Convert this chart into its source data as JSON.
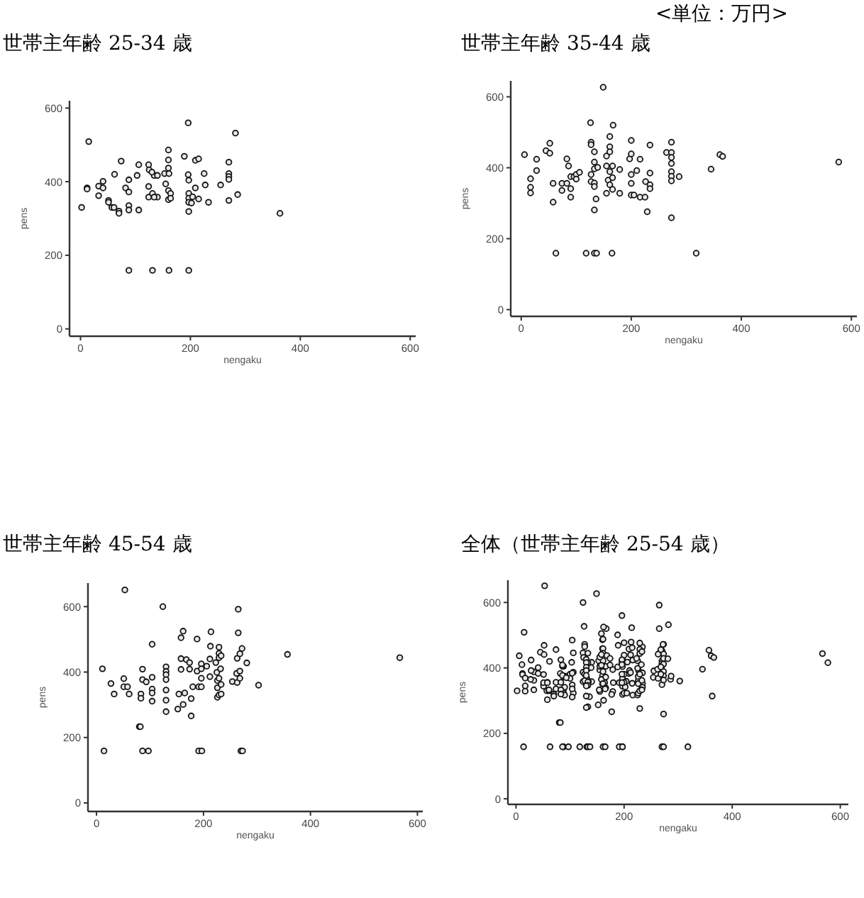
{
  "chart_data": [
    {
      "type": "scatter",
      "title": "世帯主年齢 25-34 歳",
      "xlabel": "nengaku",
      "ylabel": "pens",
      "xlim": [
        -20,
        610
      ],
      "ylim": [
        -20,
        620
      ],
      "xticks": [
        0,
        200,
        400,
        600
      ],
      "yticks": [
        0,
        200,
        400,
        600
      ],
      "marker": "circle",
      "x": [
        2,
        15,
        12,
        12,
        33,
        33,
        41,
        41,
        51,
        51,
        57,
        61,
        62,
        70,
        70,
        74,
        82,
        88,
        88,
        88,
        88,
        88,
        106,
        103,
        106,
        124,
        125,
        124,
        124,
        131,
        131,
        134,
        140,
        130,
        140,
        134,
        155,
        153,
        160,
        160,
        160,
        161,
        160,
        164,
        160,
        164,
        161,
        189,
        196,
        196,
        197,
        197,
        197,
        197,
        197,
        197,
        204,
        202,
        209,
        215,
        209,
        215,
        225,
        227,
        233,
        255,
        270,
        270,
        270,
        270,
        270,
        282,
        286,
        363
      ],
      "values": [
        330,
        509,
        383,
        380,
        388,
        362,
        401,
        383,
        349,
        344,
        330,
        330,
        420,
        320,
        314,
        456,
        383,
        372,
        405,
        335,
        323,
        159,
        323,
        417,
        446,
        446,
        432,
        387,
        358,
        368,
        159,
        417,
        417,
        426,
        358,
        358,
        394,
        422,
        486,
        459,
        437,
        422,
        376,
        368,
        351,
        355,
        159,
        469,
        560,
        419,
        404,
        368,
        355,
        344,
        319,
        159,
        359,
        342,
        458,
        462,
        383,
        353,
        422,
        391,
        344,
        391,
        453,
        422,
        414,
        406,
        349,
        532,
        365,
        314
      ]
    },
    {
      "type": "scatter",
      "title": "世帯主年齢 35-44 歳",
      "xlabel": "nengaku",
      "ylabel": "pens",
      "xlim": [
        -19,
        610
      ],
      "ylim": [
        -19,
        645
      ],
      "xticks": [
        0,
        200,
        400,
        600
      ],
      "yticks": [
        0,
        200,
        400,
        600
      ],
      "marker": "circle",
      "annotations": [
        "<単位：万円>"
      ],
      "x": [
        6,
        17,
        17,
        17,
        28,
        28,
        45,
        52,
        52,
        58,
        58,
        63,
        74,
        74,
        83,
        83,
        86,
        90,
        90,
        90,
        96,
        100,
        100,
        106,
        118,
        126,
        127,
        127,
        127,
        127,
        133,
        133,
        133,
        133,
        133,
        133,
        136,
        133,
        137,
        139,
        149,
        155,
        155,
        155,
        158,
        161,
        161,
        161,
        161,
        161,
        165,
        167,
        166,
        166,
        166,
        179,
        179,
        197,
        200,
        200,
        200,
        200,
        200,
        205,
        210,
        216,
        216,
        225,
        226,
        229,
        234,
        234,
        234,
        234,
        264,
        273,
        273,
        273,
        273,
        273,
        273,
        273,
        273,
        287,
        318,
        345,
        361,
        366,
        577
      ],
      "values": [
        437,
        369,
        345,
        329,
        424,
        392,
        448,
        469,
        441,
        356,
        303,
        159,
        356,
        336,
        425,
        356,
        405,
        375,
        341,
        317,
        375,
        381,
        368,
        387,
        159,
        527,
        472,
        465,
        381,
        361,
        445,
        416,
        397,
        357,
        347,
        281,
        312,
        159,
        159,
        401,
        627,
        405,
        433,
        328,
        365,
        488,
        459,
        445,
        389,
        352,
        159,
        520,
        405,
        372,
        339,
        395,
        328,
        425,
        477,
        439,
        381,
        356,
        323,
        323,
        392,
        424,
        317,
        317,
        361,
        276,
        464,
        385,
        352,
        341,
        443,
        472,
        443,
        429,
        412,
        389,
        376,
        363,
        259,
        375,
        159,
        396,
        437,
        432,
        416
      ]
    },
    {
      "type": "scatter",
      "title": "世帯主年齢 45-54 歳",
      "xlabel": "nengaku",
      "ylabel": "pens",
      "xlim": [
        -16,
        610
      ],
      "ylim": [
        -26,
        672
      ],
      "xticks": [
        0,
        200,
        400,
        600
      ],
      "yticks": [
        0,
        200,
        400,
        600
      ],
      "marker": "circle",
      "x": [
        11,
        14,
        27,
        33,
        51,
        53,
        51,
        58,
        61,
        80,
        82,
        83,
        83,
        86,
        86,
        86,
        93,
        97,
        104,
        104,
        104,
        104,
        104,
        124,
        130,
        130,
        130,
        130,
        130,
        130,
        130,
        152,
        154,
        158,
        162,
        158,
        158,
        162,
        165,
        168,
        174,
        174,
        177,
        177,
        180,
        188,
        188,
        191,
        196,
        196,
        196,
        196,
        191,
        197,
        206,
        212,
        212,
        214,
        213,
        223,
        225,
        226,
        226,
        226,
        229,
        229,
        229,
        229,
        229,
        232,
        233,
        233,
        233,
        254,
        262,
        263,
        263,
        265,
        265,
        268,
        268,
        268,
        272,
        270,
        273,
        281,
        303,
        357,
        567
      ],
      "values": [
        410,
        159,
        365,
        333,
        380,
        651,
        355,
        355,
        333,
        233,
        233,
        333,
        320,
        409,
        377,
        159,
        370,
        159,
        485,
        384,
        348,
        336,
        311,
        600,
        279,
        416,
        402,
        392,
        377,
        345,
        314,
        287,
        333,
        505,
        525,
        441,
        408,
        301,
        336,
        438,
        429,
        409,
        266,
        319,
        355,
        501,
        403,
        355,
        425,
        410,
        381,
        355,
        159,
        159,
        418,
        440,
        386,
        523,
        479,
        429,
        399,
        374,
        352,
        323,
        476,
        457,
        444,
        381,
        330,
        410,
        450,
        362,
        333,
        371,
        396,
        442,
        368,
        520,
        592,
        456,
        403,
        381,
        472,
        159,
        159,
        428,
        360,
        454,
        444
      ]
    },
    {
      "type": "scatter",
      "title": "全体（世帯主年齢 25-54 歳）",
      "xlabel": "nengaku",
      "ylabel": "pens",
      "xlim": [
        -15,
        615
      ],
      "ylim": [
        -17,
        668
      ],
      "xticks": [
        0,
        200,
        400,
        600
      ],
      "yticks": [
        0,
        200,
        400,
        600
      ],
      "marker": "circle",
      "x": [
        2,
        15,
        12,
        12,
        33,
        33,
        41,
        41,
        51,
        51,
        57,
        61,
        62,
        70,
        70,
        74,
        82,
        88,
        88,
        88,
        88,
        88,
        106,
        103,
        106,
        124,
        125,
        124,
        124,
        131,
        131,
        140,
        130,
        140,
        134,
        155,
        153,
        160,
        160,
        161,
        160,
        164,
        160,
        164,
        161,
        189,
        196,
        196,
        197,
        197,
        197,
        197,
        197,
        204,
        202,
        209,
        215,
        209,
        215,
        225,
        227,
        233,
        255,
        270,
        270,
        270,
        270,
        270,
        282,
        286,
        363,
        6,
        17,
        17,
        17,
        28,
        28,
        45,
        52,
        52,
        58,
        58,
        63,
        74,
        74,
        83,
        83,
        86,
        90,
        90,
        90,
        96,
        100,
        100,
        106,
        118,
        126,
        127,
        127,
        127,
        127,
        133,
        133,
        133,
        133,
        133,
        133,
        136,
        133,
        137,
        139,
        149,
        155,
        155,
        155,
        158,
        161,
        161,
        161,
        161,
        161,
        165,
        167,
        166,
        166,
        166,
        179,
        179,
        197,
        200,
        200,
        200,
        200,
        200,
        205,
        210,
        216,
        216,
        225,
        226,
        229,
        234,
        234,
        234,
        234,
        264,
        273,
        273,
        273,
        273,
        273,
        273,
        273,
        273,
        287,
        318,
        345,
        361,
        366,
        577,
        11,
        14,
        27,
        33,
        51,
        53,
        51,
        58,
        61,
        80,
        82,
        83,
        83,
        86,
        86,
        86,
        93,
        97,
        104,
        104,
        104,
        104,
        104,
        124,
        130,
        130,
        130,
        130,
        130,
        130,
        130,
        152,
        154,
        158,
        162,
        158,
        158,
        162,
        165,
        168,
        174,
        174,
        177,
        177,
        180,
        188,
        188,
        191,
        196,
        196,
        196,
        196,
        191,
        197,
        206,
        212,
        212,
        214,
        213,
        223,
        225,
        226,
        226,
        226,
        229,
        229,
        229,
        229,
        229,
        232,
        233,
        233,
        233,
        254,
        262,
        263,
        263,
        265,
        265,
        268,
        268,
        268,
        272,
        270,
        273,
        281,
        303,
        357,
        567
      ],
      "values": [
        330,
        509,
        383,
        380,
        388,
        362,
        401,
        383,
        349,
        344,
        330,
        330,
        420,
        320,
        314,
        456,
        383,
        372,
        405,
        335,
        323,
        159,
        323,
        417,
        446,
        446,
        432,
        387,
        358,
        368,
        159,
        417,
        426,
        358,
        358,
        394,
        422,
        486,
        459,
        422,
        376,
        368,
        351,
        355,
        159,
        469,
        560,
        419,
        404,
        368,
        344,
        319,
        159,
        359,
        342,
        458,
        462,
        383,
        353,
        422,
        391,
        344,
        391,
        453,
        422,
        414,
        406,
        349,
        532,
        365,
        314,
        437,
        369,
        345,
        329,
        424,
        392,
        448,
        469,
        441,
        356,
        303,
        159,
        356,
        336,
        425,
        356,
        405,
        375,
        341,
        317,
        375,
        381,
        368,
        387,
        159,
        527,
        472,
        465,
        381,
        361,
        445,
        416,
        397,
        357,
        347,
        281,
        312,
        159,
        159,
        401,
        627,
        405,
        433,
        328,
        365,
        488,
        459,
        445,
        389,
        352,
        159,
        520,
        405,
        372,
        339,
        395,
        328,
        425,
        477,
        439,
        381,
        356,
        323,
        323,
        392,
        424,
        317,
        317,
        361,
        276,
        464,
        385,
        352,
        341,
        443,
        472,
        443,
        429,
        412,
        389,
        376,
        363,
        259,
        375,
        159,
        396,
        437,
        432,
        416,
        410,
        159,
        365,
        333,
        380,
        651,
        355,
        355,
        333,
        233,
        233,
        333,
        320,
        409,
        377,
        159,
        370,
        159,
        485,
        384,
        348,
        336,
        311,
        600,
        279,
        416,
        402,
        392,
        377,
        345,
        314,
        287,
        333,
        505,
        525,
        441,
        408,
        301,
        336,
        438,
        429,
        409,
        266,
        319,
        355,
        501,
        403,
        355,
        425,
        410,
        381,
        355,
        159,
        159,
        418,
        440,
        386,
        523,
        479,
        429,
        399,
        374,
        352,
        323,
        476,
        457,
        444,
        381,
        330,
        410,
        450,
        362,
        333,
        371,
        396,
        442,
        368,
        520,
        592,
        456,
        403,
        381,
        472,
        159,
        159,
        428,
        360,
        454,
        444
      ]
    }
  ]
}
